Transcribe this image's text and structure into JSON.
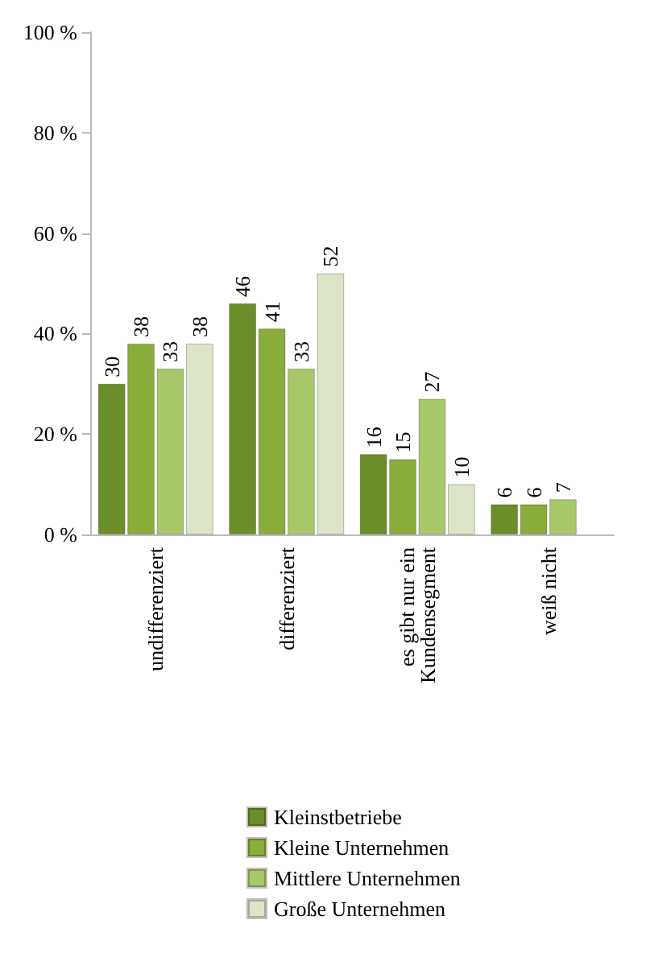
{
  "chart_data": {
    "type": "bar",
    "categories": [
      "undifferenziert",
      "differenziert",
      "es gibt nur ein Kundensegment",
      "weiß nicht"
    ],
    "series": [
      {
        "name": "Kleinstbetriebe",
        "color": "#6b8e2a",
        "values": [
          30,
          46,
          16,
          6
        ]
      },
      {
        "name": "Kleine Unternehmen",
        "color": "#8aad3b",
        "values": [
          38,
          41,
          15,
          6
        ]
      },
      {
        "name": "Mittlere Unternehmen",
        "color": "#a9c86a",
        "values": [
          33,
          33,
          27,
          7
        ]
      },
      {
        "name": "Große Unternehmen",
        "color": "#dde5c8",
        "values": [
          38,
          52,
          10,
          null
        ]
      }
    ],
    "ylim": [
      0,
      100
    ],
    "yticks": [
      {
        "value": 0,
        "label": "0 %"
      },
      {
        "value": 20,
        "label": "20 %"
      },
      {
        "value": 40,
        "label": "40 %"
      },
      {
        "value": 60,
        "label": "60 %"
      },
      {
        "value": 80,
        "label": "80 %"
      },
      {
        "value": 100,
        "label": "100 %"
      }
    ],
    "data_labels": true,
    "grid": false,
    "legend": "bottom"
  }
}
